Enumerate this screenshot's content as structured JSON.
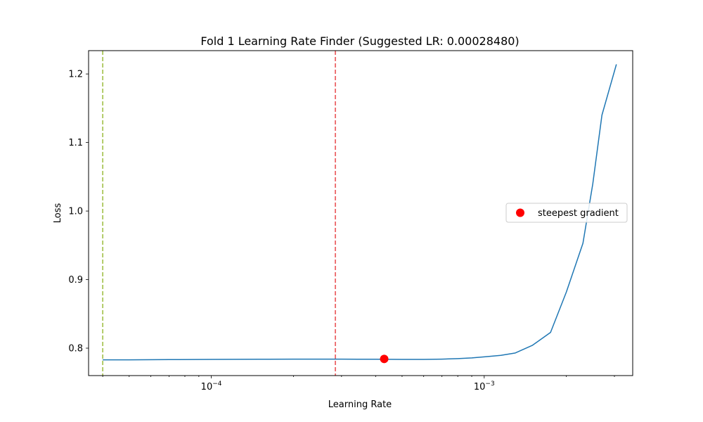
{
  "chart_data": {
    "type": "line",
    "title": "Fold 1 Learning Rate Finder (Suggested LR: 0.00028480)",
    "xlabel": "Learning Rate",
    "ylabel": "Loss",
    "xscale": "log",
    "xlim": [
      3.55e-05,
      0.0035
    ],
    "ylim": [
      0.76,
      1.234
    ],
    "grid": false,
    "x_major_ticks": [
      {
        "value": 0.0001,
        "base": "10",
        "exp": "−4"
      },
      {
        "value": 0.001,
        "base": "10",
        "exp": "−3"
      }
    ],
    "x_minor_ticks": [
      4e-05,
      5e-05,
      6e-05,
      7e-05,
      8e-05,
      9e-05,
      0.0002,
      0.0003,
      0.0004,
      0.0005,
      0.0006,
      0.0007,
      0.0008,
      0.0009,
      0.002,
      0.003
    ],
    "y_ticks": [
      {
        "value": 0.8,
        "label": "0.8"
      },
      {
        "value": 0.9,
        "label": "0.9"
      },
      {
        "value": 1.0,
        "label": "1.0"
      },
      {
        "value": 1.1,
        "label": "1.1"
      },
      {
        "value": 1.2,
        "label": "1.2"
      }
    ],
    "series": [
      {
        "color": "#1f77b4",
        "x": [
          4e-05,
          5e-05,
          7e-05,
          0.0001,
          0.00015,
          0.0002,
          0.0003,
          0.0004,
          0.0005,
          0.0006,
          0.0007,
          0.0008,
          0.0009,
          0.001,
          0.00115,
          0.0013,
          0.0015,
          0.00175,
          0.002,
          0.0023,
          0.0025,
          0.0027,
          0.00305
        ],
        "y": [
          0.783,
          0.783,
          0.7833,
          0.7836,
          0.7838,
          0.784,
          0.784,
          0.7838,
          0.7836,
          0.7836,
          0.784,
          0.7848,
          0.7858,
          0.7873,
          0.7895,
          0.793,
          0.804,
          0.823,
          0.882,
          0.953,
          1.04,
          1.14,
          1.214
        ]
      }
    ],
    "vlines": [
      {
        "x": 4e-05,
        "color": "#9abb3a",
        "style": "dashed"
      },
      {
        "x": 0.0002848,
        "color": "#e8474a",
        "style": "dashed"
      }
    ],
    "marker": {
      "x": 0.00043,
      "y": 0.7843,
      "color": "#ff0000",
      "label": "steepest gradient"
    },
    "legend": {
      "position": "center-right",
      "entries": [
        {
          "label": "steepest gradient",
          "color": "#ff0000"
        }
      ]
    }
  }
}
